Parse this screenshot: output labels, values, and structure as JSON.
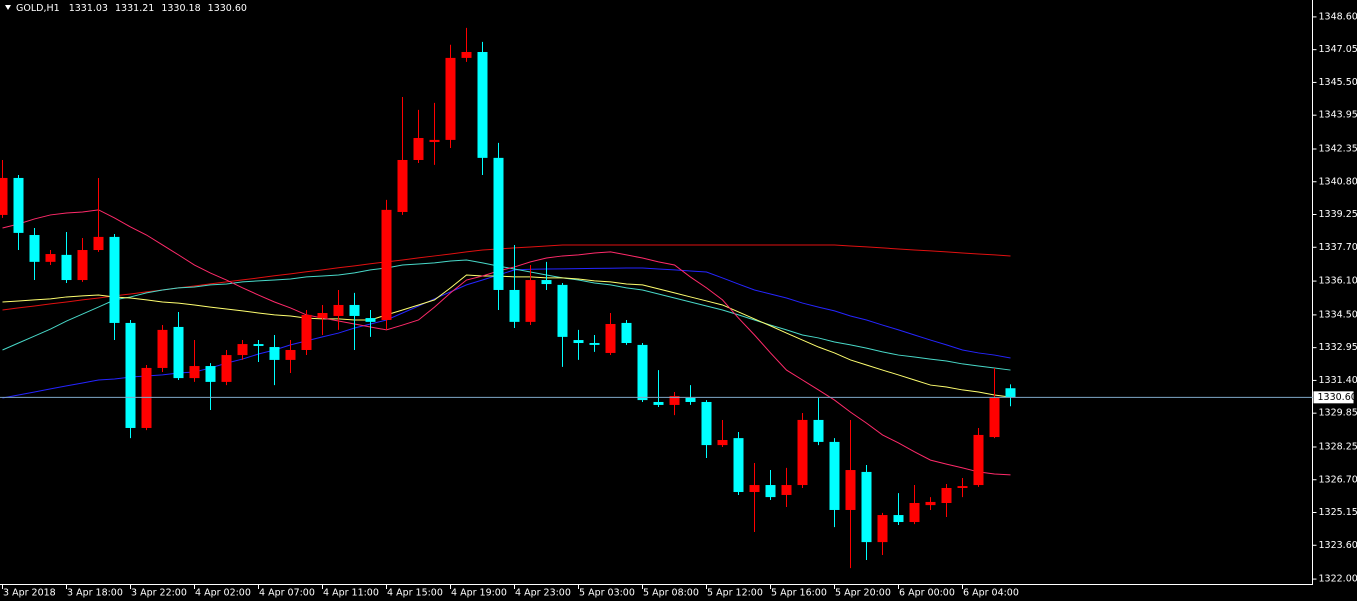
{
  "chart_data": {
    "type": "candlestick",
    "title": "GOLD,H1",
    "ohlc_labels": [
      "1331.03",
      "1331.21",
      "1330.18",
      "1330.60"
    ],
    "categories": [
      "3 Apr 2018",
      null,
      null,
      null,
      "3 Apr 18:00",
      null,
      null,
      null,
      "3 Apr 22:00",
      null,
      null,
      null,
      "4 Apr 02:00",
      null,
      null,
      null,
      "4 Apr 07:00",
      null,
      null,
      null,
      "4 Apr 11:00",
      null,
      null,
      null,
      "4 Apr 15:00",
      null,
      null,
      null,
      "4 Apr 19:00",
      null,
      null,
      null,
      "4 Apr 23:00",
      null,
      null,
      null,
      "5 Apr 03:00",
      null,
      null,
      null,
      "5 Apr 08:00",
      null,
      null,
      null,
      "5 Apr 12:00",
      null,
      null,
      null,
      "5 Apr 16:00",
      null,
      null,
      null,
      "5 Apr 20:00",
      null,
      null,
      null,
      "6 Apr 00:00",
      null,
      null,
      null,
      "6 Apr 04:00",
      null,
      null,
      null
    ],
    "candles": {
      "up_color": "#ff0000",
      "down_color": "#00ffff",
      "open": [
        1339.23,
        1340.98,
        1338.28,
        1337.01,
        1337.34,
        1336.15,
        1337.57,
        1338.19,
        1334.12,
        1329.15,
        1331.99,
        1333.93,
        1331.51,
        1332.08,
        1331.33,
        1332.6,
        1333.12,
        1332.98,
        1332.37,
        1332.84,
        1334.35,
        1334.45,
        1334.97,
        1334.35,
        1334.26,
        1339.37,
        1341.83,
        1342.68,
        1342.78,
        1346.66,
        1346.94,
        1341.93,
        1335.68,
        1334.17,
        1336.15,
        1335.92,
        1333.31,
        1333.17,
        1332.7,
        1334.12,
        1333.08,
        1330.38,
        1330.24,
        1330.57,
        1330.38,
        1328.34,
        1328.67,
        1326.12,
        1326.45,
        1325.98,
        1326.45,
        1329.53,
        1328.49,
        1325.27,
        1327.07,
        1323.75,
        1325.03,
        1324.7,
        1325.5,
        1325.6,
        1326.31,
        1326.45,
        1328.72,
        1331.03
      ],
      "high": [
        1341.83,
        1341.12,
        1338.61,
        1337.57,
        1338.42,
        1338.14,
        1340.98,
        1338.33,
        1334.26,
        1332.13,
        1334.02,
        1334.64,
        1333.31,
        1332.22,
        1332.84,
        1333.31,
        1333.31,
        1333.55,
        1333.31,
        1334.73,
        1334.97,
        1335.68,
        1335.54,
        1334.73,
        1339.94,
        1344.81,
        1344.2,
        1344.53,
        1347.28,
        1348.08,
        1347.42,
        1342.64,
        1337.81,
        1336.86,
        1337.01,
        1336.01,
        1333.79,
        1333.55,
        1334.59,
        1334.26,
        1333.17,
        1331.89,
        1330.85,
        1331.18,
        1330.47,
        1329.53,
        1328.96,
        1327.49,
        1327.16,
        1327.26,
        1329.86,
        1330.57,
        1328.67,
        1329.53,
        1327.4,
        1325.13,
        1326.07,
        1326.45,
        1325.88,
        1326.5,
        1326.78,
        1329.15,
        1331.99,
        1331.21
      ],
      "low": [
        1339.09,
        1337.57,
        1336.15,
        1336.86,
        1336.01,
        1336.06,
        1337.48,
        1333.31,
        1328.67,
        1329.05,
        1331.8,
        1331.42,
        1331.33,
        1330.0,
        1331.18,
        1332.37,
        1332.27,
        1331.18,
        1331.75,
        1332.6,
        1333.55,
        1333.79,
        1332.84,
        1333.46,
        1333.79,
        1339.23,
        1341.69,
        1341.6,
        1342.4,
        1346.47,
        1341.12,
        1334.73,
        1333.88,
        1334.02,
        1335.68,
        1332.04,
        1332.37,
        1332.75,
        1332.6,
        1333.08,
        1330.38,
        1330.14,
        1329.76,
        1330.24,
        1327.73,
        1328.25,
        1325.98,
        1324.23,
        1325.74,
        1325.41,
        1326.31,
        1328.34,
        1324.46,
        1322.52,
        1322.9,
        1323.14,
        1324.56,
        1324.6,
        1325.27,
        1324.94,
        1325.88,
        1326.36,
        1328.67,
        1330.18
      ],
      "close": [
        1340.98,
        1338.38,
        1337.01,
        1337.38,
        1336.15,
        1337.57,
        1338.19,
        1334.12,
        1329.15,
        1331.99,
        1333.79,
        1331.51,
        1332.08,
        1331.33,
        1332.6,
        1333.12,
        1333.03,
        1332.37,
        1332.84,
        1334.5,
        1334.59,
        1334.97,
        1334.45,
        1334.17,
        1339.47,
        1341.83,
        1342.87,
        1342.78,
        1346.66,
        1346.94,
        1341.93,
        1335.68,
        1334.17,
        1336.15,
        1335.96,
        1333.46,
        1333.17,
        1333.08,
        1334.07,
        1333.17,
        1330.47,
        1330.24,
        1330.66,
        1330.38,
        1328.34,
        1328.58,
        1326.12,
        1326.45,
        1325.88,
        1326.45,
        1329.53,
        1328.49,
        1325.27,
        1327.16,
        1323.75,
        1325.03,
        1324.7,
        1325.6,
        1325.65,
        1326.31,
        1326.4,
        1328.82,
        1330.57,
        1330.6
      ]
    },
    "overlays": [
      {
        "color": "#e01010",
        "values": [
          1334.73,
          1334.83,
          1334.92,
          1335.02,
          1335.11,
          1335.21,
          1335.3,
          1335.4,
          1335.49,
          1335.59,
          1335.68,
          1335.78,
          1335.87,
          1335.97,
          1336.06,
          1336.16,
          1336.25,
          1336.35,
          1336.44,
          1336.54,
          1336.63,
          1336.73,
          1336.82,
          1336.92,
          1337.01,
          1337.1,
          1337.2,
          1337.29,
          1337.38,
          1337.48,
          1337.57,
          1337.62,
          1337.67,
          1337.71,
          1337.76,
          1337.81,
          1337.81,
          1337.81,
          1337.81,
          1337.81,
          1337.81,
          1337.81,
          1337.81,
          1337.81,
          1337.81,
          1337.81,
          1337.81,
          1337.81,
          1337.81,
          1337.81,
          1337.81,
          1337.81,
          1337.81,
          1337.76,
          1337.72,
          1337.67,
          1337.62,
          1337.57,
          1337.53,
          1337.48,
          1337.43,
          1337.38,
          1337.34,
          1337.29
        ]
      },
      {
        "color": "#2525ff",
        "values": [
          1330.57,
          1330.71,
          1330.85,
          1331.0,
          1331.14,
          1331.28,
          1331.42,
          1331.47,
          1331.56,
          1331.61,
          1331.66,
          1331.75,
          1331.8,
          1331.99,
          1332.22,
          1332.41,
          1332.65,
          1332.84,
          1333.08,
          1333.27,
          1333.46,
          1333.64,
          1333.88,
          1334.07,
          1334.26,
          1334.59,
          1334.92,
          1335.26,
          1335.59,
          1335.92,
          1336.15,
          1336.39,
          1336.63,
          1336.66,
          1336.67,
          1336.68,
          1336.69,
          1336.7,
          1336.71,
          1336.72,
          1336.72,
          1336.67,
          1336.63,
          1336.58,
          1336.53,
          1336.25,
          1335.96,
          1335.68,
          1335.49,
          1335.3,
          1335.06,
          1334.87,
          1334.69,
          1334.45,
          1334.26,
          1334.02,
          1333.79,
          1333.55,
          1333.31,
          1333.08,
          1332.84,
          1332.7,
          1332.6,
          1332.46
        ]
      },
      {
        "color": "#48d8c8",
        "values": [
          1332.84,
          1333.17,
          1333.5,
          1333.83,
          1334.21,
          1334.54,
          1334.87,
          1335.21,
          1335.35,
          1335.54,
          1335.68,
          1335.78,
          1335.82,
          1335.92,
          1335.96,
          1336.06,
          1336.11,
          1336.15,
          1336.2,
          1336.3,
          1336.34,
          1336.39,
          1336.49,
          1336.63,
          1336.72,
          1336.86,
          1336.91,
          1336.96,
          1337.05,
          1337.1,
          1336.96,
          1336.81,
          1336.67,
          1336.53,
          1336.39,
          1336.25,
          1336.15,
          1336.01,
          1335.92,
          1335.78,
          1335.68,
          1335.49,
          1335.3,
          1335.11,
          1334.92,
          1334.73,
          1334.5,
          1334.26,
          1334.02,
          1333.79,
          1333.55,
          1333.41,
          1333.22,
          1333.08,
          1332.93,
          1332.75,
          1332.6,
          1332.51,
          1332.41,
          1332.32,
          1332.18,
          1332.08,
          1331.99,
          1331.89
        ]
      },
      {
        "color": "#ffff70",
        "values": [
          1335.11,
          1335.16,
          1335.21,
          1335.26,
          1335.35,
          1335.4,
          1335.44,
          1335.35,
          1335.3,
          1335.21,
          1335.11,
          1335.06,
          1334.97,
          1334.87,
          1334.78,
          1334.69,
          1334.59,
          1334.5,
          1334.45,
          1334.35,
          1334.31,
          1334.31,
          1334.26,
          1334.26,
          1334.5,
          1334.73,
          1334.97,
          1335.21,
          1335.78,
          1336.39,
          1336.34,
          1336.34,
          1336.3,
          1336.3,
          1336.25,
          1336.25,
          1336.2,
          1336.11,
          1336.06,
          1335.96,
          1335.92,
          1335.73,
          1335.54,
          1335.35,
          1335.16,
          1334.97,
          1334.64,
          1334.31,
          1333.98,
          1333.64,
          1333.31,
          1332.98,
          1332.7,
          1332.37,
          1332.13,
          1331.89,
          1331.66,
          1331.42,
          1331.18,
          1331.09,
          1330.95,
          1330.85,
          1330.71,
          1330.61
        ]
      },
      {
        "color": "#ff2a6a",
        "values": [
          1338.61,
          1338.8,
          1339.04,
          1339.23,
          1339.32,
          1339.37,
          1339.47,
          1339.09,
          1338.66,
          1338.28,
          1337.81,
          1337.34,
          1336.86,
          1336.48,
          1336.15,
          1335.78,
          1335.44,
          1335.11,
          1334.83,
          1334.5,
          1334.35,
          1334.21,
          1334.07,
          1333.93,
          1333.79,
          1334.02,
          1334.26,
          1334.87,
          1335.54,
          1336.15,
          1336.34,
          1336.58,
          1336.77,
          1337.01,
          1337.19,
          1337.29,
          1337.34,
          1337.43,
          1337.48,
          1337.34,
          1337.19,
          1337.01,
          1336.86,
          1336.29,
          1335.78,
          1335.21,
          1334.35,
          1333.55,
          1332.7,
          1331.89,
          1331.42,
          1330.95,
          1330.47,
          1329.9,
          1329.38,
          1328.82,
          1328.44,
          1328.02,
          1327.63,
          1327.44,
          1327.26,
          1327.07,
          1326.97,
          1326.93
        ]
      }
    ],
    "price_line_color": "#7fa8c8",
    "ylim": [
      1321.72,
      1349.4
    ],
    "yticks": [
      {
        "value": 1348.6,
        "label": "1348.60"
      },
      {
        "value": 1347.05,
        "label": "1347.05"
      },
      {
        "value": 1345.5,
        "label": "1345.50"
      },
      {
        "value": 1343.95,
        "label": "1343.95"
      },
      {
        "value": 1342.35,
        "label": "1342.35"
      },
      {
        "value": 1340.8,
        "label": "1340.80"
      },
      {
        "value": 1339.25,
        "label": "1339.25"
      },
      {
        "value": 1337.7,
        "label": "1337.70"
      },
      {
        "value": 1336.1,
        "label": "1336.10"
      },
      {
        "value": 1334.5,
        "label": "1334.50"
      },
      {
        "value": 1332.95,
        "label": "1332.95"
      },
      {
        "value": 1331.4,
        "label": "1331.40"
      },
      {
        "value": 1329.85,
        "label": "1329.85"
      },
      {
        "value": 1328.25,
        "label": "1328.25"
      },
      {
        "value": 1326.7,
        "label": "1326.70"
      },
      {
        "value": 1325.15,
        "label": "1325.15"
      },
      {
        "value": 1323.6,
        "label": "1323.60"
      },
      {
        "value": 1322,
        "label": "1322.00"
      }
    ],
    "grid": false
  }
}
